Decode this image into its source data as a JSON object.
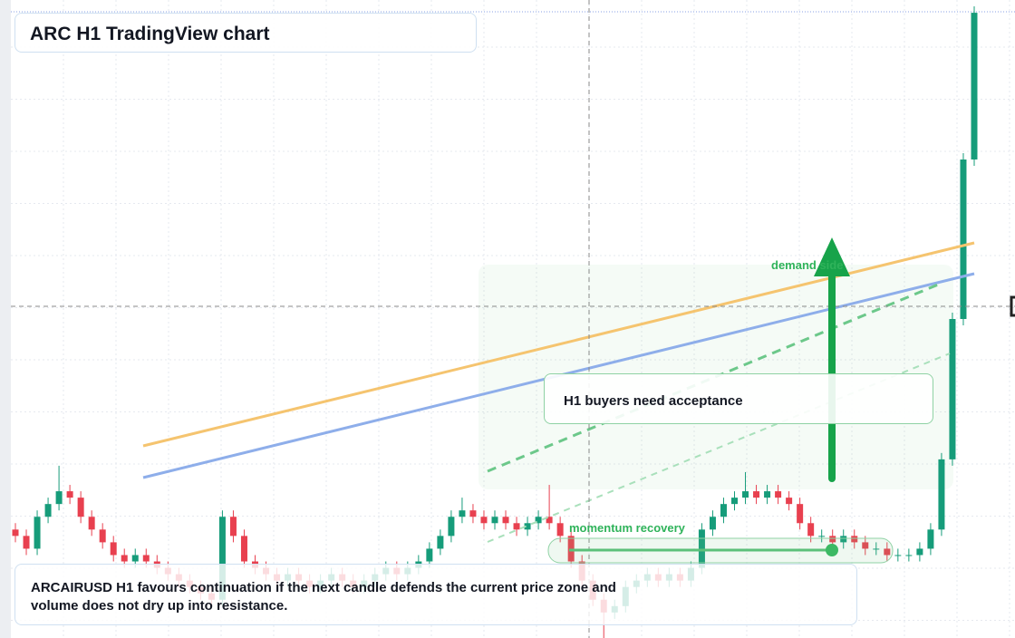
{
  "header": {
    "title": "ARC H1 TradingView chart"
  },
  "chart_data": {
    "type": "candlestick",
    "ylim": [
      0,
      100
    ],
    "grid": true,
    "up_color": "#169c7a",
    "down_color": "#e8404f",
    "open": [
      17,
      16,
      14,
      19,
      21,
      23,
      22,
      19,
      17,
      15,
      13,
      12,
      13,
      12,
      11,
      10,
      9,
      8,
      7,
      6,
      19,
      16,
      12,
      11,
      10,
      9,
      10,
      9,
      8,
      9,
      10,
      9,
      8,
      9,
      10,
      11,
      10,
      11,
      12,
      14,
      16,
      19,
      20,
      19,
      18,
      19,
      18,
      17,
      18,
      19,
      18,
      16,
      12,
      9,
      6,
      4,
      5,
      8,
      9,
      10,
      9,
      10,
      9,
      11,
      17,
      19,
      21,
      22,
      23,
      22,
      23,
      22,
      21,
      18,
      16,
      16,
      15,
      16,
      15,
      14,
      14,
      13,
      13,
      13,
      14,
      17,
      28,
      50,
      75
    ],
    "high": [
      18,
      17,
      20,
      22,
      27,
      24,
      23,
      20,
      18,
      16,
      14,
      14,
      14,
      13,
      12,
      11,
      10,
      9,
      8,
      20,
      20,
      17,
      13,
      12,
      11,
      11,
      11,
      10,
      10,
      11,
      11,
      10,
      10,
      11,
      12,
      12,
      12,
      13,
      15,
      17,
      20,
      22,
      21,
      20,
      20,
      20,
      19,
      19,
      20,
      24,
      19,
      17,
      13,
      10,
      7,
      6,
      9,
      10,
      11,
      11,
      11,
      11,
      12,
      18,
      20,
      22,
      23,
      26,
      24,
      24,
      24,
      23,
      22,
      19,
      17,
      17,
      17,
      17,
      16,
      15,
      15,
      14,
      14,
      15,
      18,
      29,
      51,
      76,
      99
    ],
    "low": [
      15,
      13,
      13,
      18,
      20,
      21,
      18,
      16,
      14,
      12,
      11,
      11,
      11,
      10,
      9,
      8,
      7,
      6,
      5,
      5,
      15,
      11,
      10,
      9,
      8,
      8,
      8,
      7,
      7,
      8,
      8,
      7,
      7,
      8,
      9,
      9,
      9,
      10,
      11,
      13,
      15,
      18,
      18,
      17,
      17,
      17,
      16,
      16,
      17,
      17,
      15,
      11,
      8,
      5,
      0,
      3,
      4,
      7,
      8,
      8,
      8,
      8,
      8,
      10,
      16,
      18,
      20,
      21,
      21,
      21,
      21,
      20,
      17,
      15,
      15,
      14,
      14,
      14,
      13,
      13,
      12,
      12,
      12,
      12,
      13,
      16,
      27,
      49,
      74
    ],
    "close": [
      16,
      14,
      19,
      21,
      23,
      22,
      19,
      17,
      15,
      13,
      12,
      13,
      12,
      11,
      10,
      9,
      8,
      7,
      6,
      19,
      16,
      12,
      11,
      10,
      9,
      10,
      9,
      8,
      9,
      10,
      9,
      8,
      9,
      10,
      11,
      10,
      11,
      12,
      14,
      16,
      19,
      20,
      19,
      18,
      19,
      18,
      17,
      18,
      19,
      18,
      16,
      12,
      9,
      6,
      4,
      5,
      8,
      9,
      10,
      9,
      10,
      9,
      11,
      17,
      19,
      21,
      22,
      23,
      22,
      23,
      22,
      21,
      18,
      16,
      16,
      15,
      16,
      15,
      14,
      14,
      13,
      13,
      13,
      14,
      17,
      28,
      50,
      75,
      98
    ]
  },
  "annotations": {
    "zone": "demand side",
    "callout": "H1 buyers need acceptance",
    "marker": "momentum recovery"
  },
  "note": [
    "ARCAIRUSD H1 favours continuation if the next candle defends the current price zone and",
    "volume does not dry up into resistance."
  ]
}
